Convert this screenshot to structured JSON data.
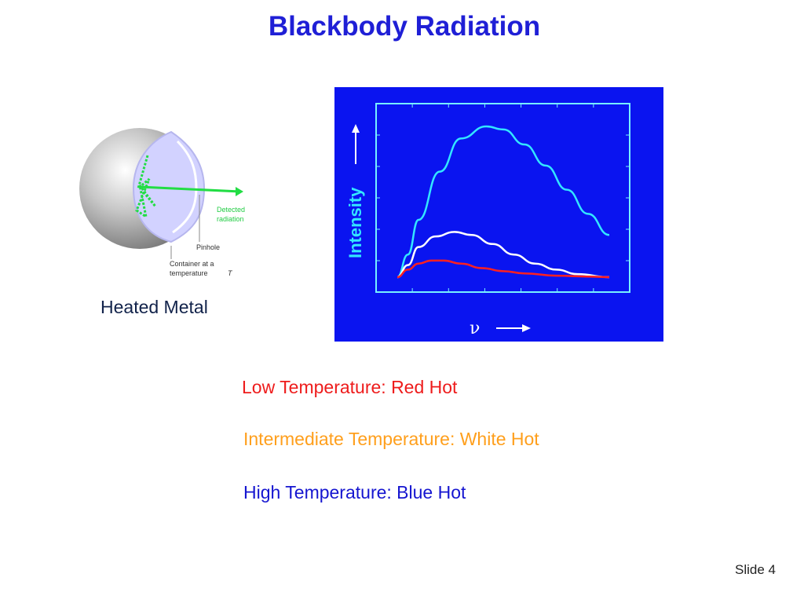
{
  "slide": {
    "title": "Blackbody Radiation",
    "number_label": "Slide 4"
  },
  "sphere_figure": {
    "caption": "Heated Metal",
    "detected_label_line1": "Detected",
    "detected_label_line2": "radiation",
    "pinhole_label": "Pinhole",
    "container_label_line1": "Container at a",
    "container_label_line2": "temperature",
    "container_label_var": "T"
  },
  "chart_data": {
    "type": "line",
    "title": "",
    "xlabel": "ν",
    "ylabel": "Intensity",
    "grid": false,
    "series": [
      {
        "color": "#33e6ff",
        "x": [
          0.0,
          0.05,
          0.1,
          0.2,
          0.3,
          0.42,
          0.5,
          0.6,
          0.7,
          0.8,
          0.9,
          1.0
        ],
        "y": [
          0.0,
          0.15,
          0.38,
          0.7,
          0.92,
          1.0,
          0.98,
          0.88,
          0.74,
          0.58,
          0.42,
          0.28
        ]
      },
      {
        "color": "#ffffff",
        "x": [
          0.0,
          0.05,
          0.1,
          0.18,
          0.27,
          0.35,
          0.45,
          0.55,
          0.65,
          0.75,
          0.85,
          1.0
        ],
        "y": [
          0.0,
          0.08,
          0.2,
          0.27,
          0.3,
          0.28,
          0.22,
          0.15,
          0.09,
          0.05,
          0.02,
          0.0
        ]
      },
      {
        "color": "#ff2020",
        "x": [
          0.0,
          0.05,
          0.1,
          0.16,
          0.22,
          0.3,
          0.4,
          0.5,
          0.6,
          0.75,
          0.9,
          1.0
        ],
        "y": [
          0.0,
          0.05,
          0.09,
          0.11,
          0.11,
          0.09,
          0.06,
          0.04,
          0.025,
          0.01,
          0.004,
          0.0
        ]
      }
    ]
  },
  "temperature_lines": {
    "low": "Low Temperature:  Red Hot",
    "intermediate": "Intermediate Temperature:  White Hot",
    "high": "High Temperature:  Blue Hot"
  },
  "colors": {
    "title": "#1f1fd6",
    "panel_background": "#0a14f0",
    "panel_frame": "#77f0ff",
    "arrow_green": "#22dd44"
  }
}
